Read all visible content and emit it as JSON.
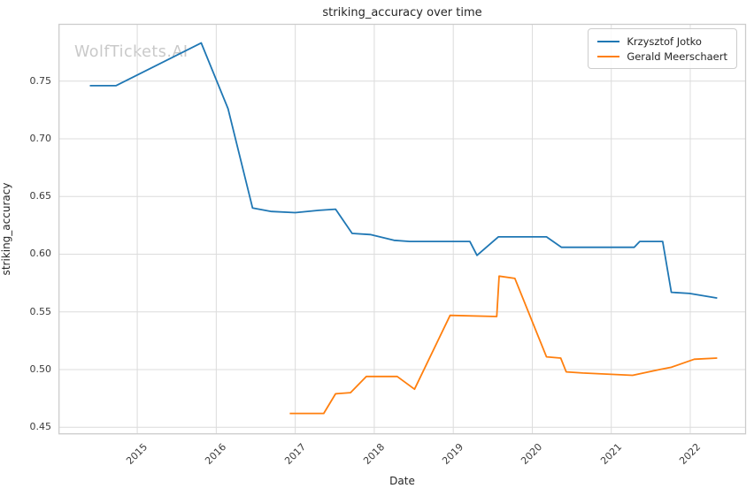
{
  "watermark": "WolfTickets.AI",
  "chart_data": {
    "type": "line",
    "title": "striking_accuracy over time",
    "xlabel": "Date",
    "ylabel": "striking_accuracy",
    "xlim": [
      2014.01,
      2022.7
    ],
    "ylim": [
      0.4443,
      0.7992
    ],
    "grid": true,
    "legend_position": "upper right",
    "x_ticks": {
      "values": [
        2015,
        2016,
        2017,
        2018,
        2019,
        2020,
        2021,
        2022
      ],
      "labels": [
        "2015",
        "2016",
        "2017",
        "2018",
        "2019",
        "2020",
        "2021",
        "2022"
      ]
    },
    "y_ticks": {
      "values": [
        0.45,
        0.5,
        0.55,
        0.6,
        0.65,
        0.7,
        0.75
      ],
      "labels": [
        "0.45",
        "0.50",
        "0.55",
        "0.60",
        "0.65",
        "0.70",
        "0.75"
      ]
    },
    "series": [
      {
        "name": "Krzysztof Jotko",
        "color": "#1f77b4",
        "points": [
          [
            2014.4,
            0.746
          ],
          [
            2014.73,
            0.746
          ],
          [
            2015.81,
            0.783
          ],
          [
            2016.15,
            0.726
          ],
          [
            2016.46,
            0.64
          ],
          [
            2016.7,
            0.637
          ],
          [
            2017.0,
            0.636
          ],
          [
            2017.3,
            0.638
          ],
          [
            2017.51,
            0.639
          ],
          [
            2017.72,
            0.618
          ],
          [
            2017.95,
            0.617
          ],
          [
            2018.25,
            0.612
          ],
          [
            2018.45,
            0.611
          ],
          [
            2019.21,
            0.611
          ],
          [
            2019.3,
            0.599
          ],
          [
            2019.57,
            0.615
          ],
          [
            2020.18,
            0.615
          ],
          [
            2020.37,
            0.606
          ],
          [
            2021.29,
            0.606
          ],
          [
            2021.36,
            0.611
          ],
          [
            2021.65,
            0.611
          ],
          [
            2021.76,
            0.567
          ],
          [
            2021.99,
            0.566
          ],
          [
            2022.34,
            0.562
          ]
        ]
      },
      {
        "name": "Gerald Meerschaert",
        "color": "#ff7f0e",
        "points": [
          [
            2016.93,
            0.462
          ],
          [
            2017.36,
            0.462
          ],
          [
            2017.51,
            0.479
          ],
          [
            2017.7,
            0.48
          ],
          [
            2017.9,
            0.494
          ],
          [
            2018.29,
            0.494
          ],
          [
            2018.51,
            0.483
          ],
          [
            2018.96,
            0.547
          ],
          [
            2019.55,
            0.546
          ],
          [
            2019.58,
            0.581
          ],
          [
            2019.78,
            0.579
          ],
          [
            2020.18,
            0.511
          ],
          [
            2020.36,
            0.51
          ],
          [
            2020.43,
            0.498
          ],
          [
            2020.64,
            0.497
          ],
          [
            2021.27,
            0.495
          ],
          [
            2021.61,
            0.5
          ],
          [
            2021.76,
            0.502
          ],
          [
            2022.05,
            0.509
          ],
          [
            2022.34,
            0.51
          ]
        ]
      }
    ]
  }
}
